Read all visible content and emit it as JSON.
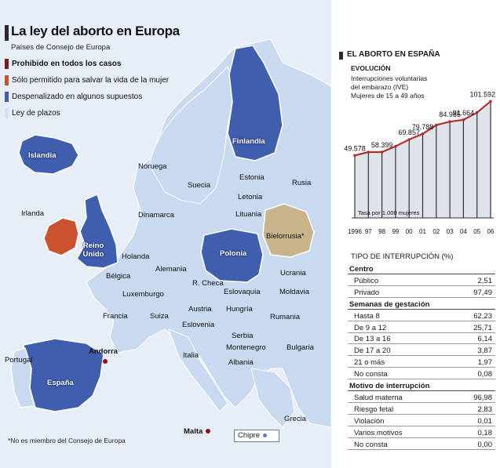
{
  "title": "La ley del aborto en Europa",
  "subtitle": "Países de Consejo de Europa",
  "legend": [
    {
      "label": "Prohibido en todos los casos",
      "color": "#7a1c1c"
    },
    {
      "label": "Sólo permitido para salvar la vida de la mujer",
      "color": "#c9532e"
    },
    {
      "label": "Despenalizado en algunos supuestos",
      "color": "#3f5fae"
    },
    {
      "label": "Ley de plazos",
      "color": "#d5e2f4"
    }
  ],
  "countries": {
    "islandia": "Islandia",
    "finlandia": "Finlandia",
    "noruega": "Noruega",
    "suecia": "Suecia",
    "estonia": "Estonia",
    "rusia": "Rusia",
    "letonia": "Letonia",
    "lituania": "Lituania",
    "irlanda": "Irlanda",
    "dinamarca": "Dinamarca",
    "bielorrusia": "Bielorrusia*",
    "reino_unido": "Reino Unido",
    "holanda": "Holanda",
    "polonia": "Polonia",
    "alemania": "Alemania",
    "belgica": "Bélgica",
    "rcheca": "R. Checa",
    "ucrania": "Ucrania",
    "luxemburgo": "Luxemburgo",
    "eslovaquia": "Eslovaquia",
    "moldavia": "Moldavia",
    "francia": "Francia",
    "suiza": "Suiza",
    "austria": "Austria",
    "hungria": "Hungría",
    "rumania": "Rumania",
    "eslovenia": "Eslovenia",
    "serbia": "Serbia",
    "montenegro": "Montenegro",
    "bulgaria": "Bulgaria",
    "andorra": "Andorra",
    "portugal": "Portugal",
    "italia": "Italia",
    "albania": "Albania",
    "espana": "España",
    "grecia": "Grecia",
    "malta": "Malta",
    "chipre": "Chipre"
  },
  "footnote": "*No es miembro del Consejo de Europa",
  "spain": {
    "section_title": "EL ABORTO EN ESPAÑA",
    "evolucion": "EVOLUCIÓN",
    "evo_lines": [
      "Interrupciones voluntarias",
      "del embarazo (IVE)",
      "Mujeres de 15 a 49 años"
    ],
    "tasa_label": "Tasa por 1.000 mujeres",
    "tipo_title": "TIPO DE INTERRUPCIÓN (%)"
  },
  "chart_data": {
    "type": "line",
    "title": "Interrupciones voluntarias del embarazo (IVE)",
    "ylabel": "Tasa por 1.000 mujeres",
    "x": [
      "1996",
      "97",
      "98",
      "99",
      "00",
      "01",
      "02",
      "03",
      "04",
      "05",
      "06"
    ],
    "values": [
      5.69,
      6.0,
      6.0,
      6.53,
      7.14,
      7.66,
      8.46,
      8.77,
      8.94,
      9.6,
      10.62
    ],
    "labels": [
      {
        "index": 0,
        "text": "49.578"
      },
      {
        "index": 2,
        "text": "58.399"
      },
      {
        "index": 4,
        "text": "69.857"
      },
      {
        "index": 5,
        "text": "79.788"
      },
      {
        "index": 7,
        "text": "84.985"
      },
      {
        "index": 8,
        "text": "91.664"
      },
      {
        "index": 10,
        "text": "101.592"
      }
    ],
    "ylim": [
      0,
      12
    ]
  },
  "table": [
    {
      "type": "head",
      "label": "Centro",
      "value": ""
    },
    {
      "type": "row",
      "label": "Público",
      "value": "2,51"
    },
    {
      "type": "row",
      "label": "Privado",
      "value": "97,49"
    },
    {
      "type": "head",
      "label": "Semanas de gestación",
      "value": ""
    },
    {
      "type": "row",
      "label": "Hasta 8",
      "value": "62,23"
    },
    {
      "type": "row",
      "label": "De 9 a 12",
      "value": "25,71"
    },
    {
      "type": "row",
      "label": "De 13 a 16",
      "value": "6,14"
    },
    {
      "type": "row",
      "label": "De 17 a 20",
      "value": "3,87"
    },
    {
      "type": "row",
      "label": "21 o más",
      "value": "1,97"
    },
    {
      "type": "row",
      "label": "No consta",
      "value": "0,08"
    },
    {
      "type": "head",
      "label": "Motivo de interrupción",
      "value": ""
    },
    {
      "type": "row",
      "label": "Salud materna",
      "value": "96,98"
    },
    {
      "type": "row",
      "label": "Riesgo fetal",
      "value": "2,83"
    },
    {
      "type": "row",
      "label": "Violación",
      "value": "0,01"
    },
    {
      "type": "row",
      "label": "Varios motivos",
      "value": "0,18"
    },
    {
      "type": "row",
      "label": "No consta",
      "value": "0,00"
    }
  ]
}
